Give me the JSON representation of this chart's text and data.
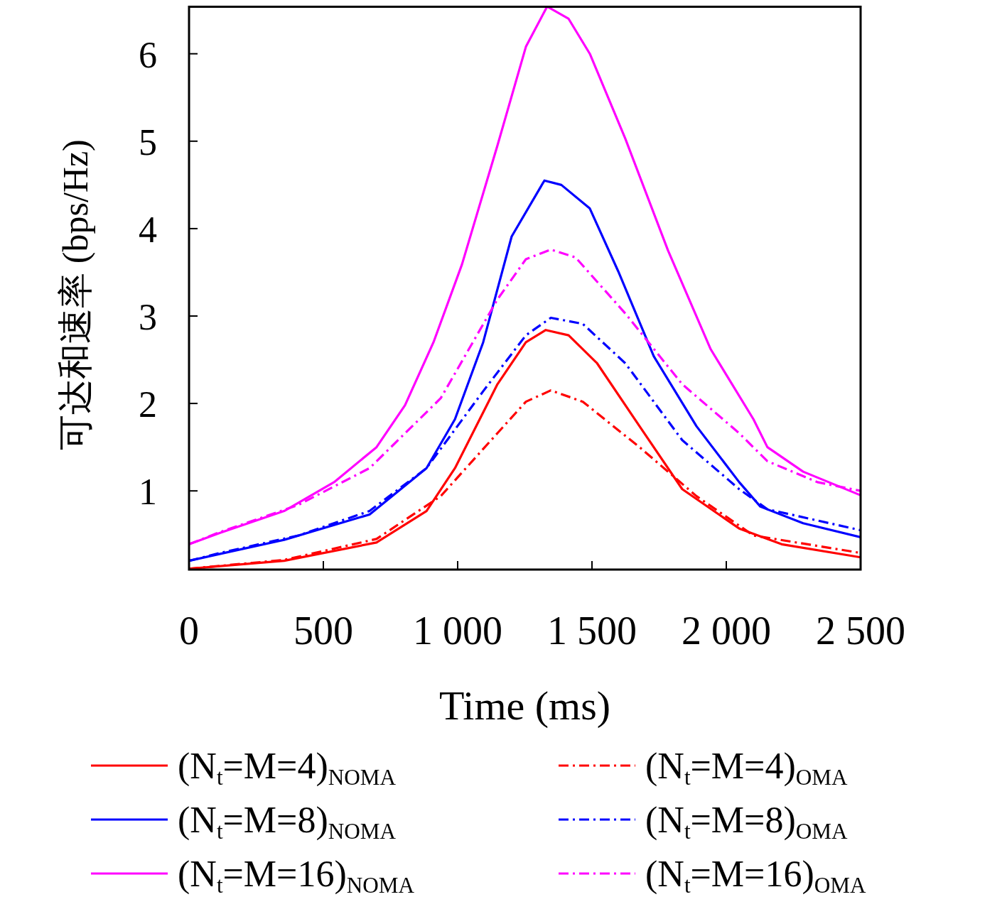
{
  "chart_data": {
    "type": "line",
    "xlabel": "Time (ms)",
    "ylabel": "可达和速率 (bps/Hz)",
    "xlim": [
      0,
      2500
    ],
    "xticks": [
      0,
      500,
      {
        "value": 1000,
        "label": "1 000"
      },
      {
        "value": 1500,
        "label": "1 500"
      },
      {
        "value": 2000,
        "label": "2 000"
      },
      {
        "value": 2500,
        "label": "2 500"
      }
    ],
    "ylim": [
      0.1,
      6.55
    ],
    "yticks": [
      1,
      2,
      3,
      4,
      5,
      6
    ],
    "grid": false,
    "legend": "bottom",
    "series": [
      {
        "name": "(N$_{t}$=M=4)$_{NOMA}$",
        "color": "#ff0000",
        "line_style": "solid",
        "x": [
          0,
          354,
          698,
          884,
          990,
          1148,
          1254,
          1328,
          1413,
          1519,
          1677,
          1836,
          2048,
          2206,
          2500
        ],
        "values": [
          0.11,
          0.2,
          0.41,
          0.77,
          1.26,
          2.22,
          2.7,
          2.84,
          2.78,
          2.46,
          1.74,
          1.02,
          0.57,
          0.39,
          0.24
        ]
      },
      {
        "name": "(N$_{t}$=M=4)$_{OMA}$",
        "color": "#ff0000",
        "line_style": "dashdot",
        "x": [
          0,
          354,
          698,
          937,
          1148,
          1254,
          1347,
          1466,
          1677,
          1889,
          2101,
          2500
        ],
        "values": [
          0.11,
          0.21,
          0.45,
          0.94,
          1.66,
          2.02,
          2.15,
          2.02,
          1.5,
          0.94,
          0.49,
          0.29
        ]
      },
      {
        "name": "(N$_{t}$=M=8)$_{NOMA}$",
        "color": "#0000ff",
        "line_style": "solid",
        "x": [
          0,
          116,
          354,
          672,
          884,
          990,
          1095,
          1201,
          1323,
          1386,
          1492,
          1598,
          1730,
          1889,
          2048,
          2127,
          2286,
          2500
        ],
        "values": [
          0.2,
          0.28,
          0.44,
          0.73,
          1.26,
          1.82,
          2.7,
          3.91,
          4.55,
          4.5,
          4.23,
          3.51,
          2.54,
          1.74,
          1.1,
          0.82,
          0.63,
          0.47
        ]
      },
      {
        "name": "(N$_{t}$=M=8)$_{OMA}$",
        "color": "#0000ff",
        "line_style": "dashdot",
        "x": [
          0,
          116,
          407,
          672,
          884,
          1095,
          1254,
          1347,
          1466,
          1624,
          1836,
          2048,
          2153,
          2500
        ],
        "values": [
          0.2,
          0.29,
          0.49,
          0.77,
          1.26,
          2.14,
          2.78,
          2.98,
          2.91,
          2.46,
          1.58,
          1.02,
          0.79,
          0.55
        ]
      },
      {
        "name": "(N$_{t}$=M=16)$_{NOMA}$",
        "color": "#ff00ff",
        "line_style": "solid",
        "x": [
          0,
          116,
          354,
          540,
          698,
          804,
          910,
          1016,
          1148,
          1254,
          1333,
          1413,
          1492,
          1624,
          1783,
          1942,
          2101,
          2153,
          2286,
          2500
        ],
        "values": [
          0.39,
          0.52,
          0.77,
          1.1,
          1.5,
          1.98,
          2.7,
          3.59,
          4.95,
          6.08,
          6.54,
          6.4,
          6.0,
          5.03,
          3.75,
          2.62,
          1.82,
          1.5,
          1.22,
          0.95
        ]
      },
      {
        "name": "(N$_{t}$=M=16)$_{OMA}$",
        "color": "#ff00ff",
        "line_style": "dashdot",
        "x": [
          0,
          116,
          407,
          672,
          937,
          1148,
          1254,
          1347,
          1439,
          1624,
          1836,
          2048,
          2153,
          2339,
          2500
        ],
        "values": [
          0.39,
          0.53,
          0.84,
          1.26,
          2.06,
          3.19,
          3.65,
          3.76,
          3.67,
          3.03,
          2.22,
          1.66,
          1.34,
          1.1,
          1.0
        ]
      }
    ]
  }
}
